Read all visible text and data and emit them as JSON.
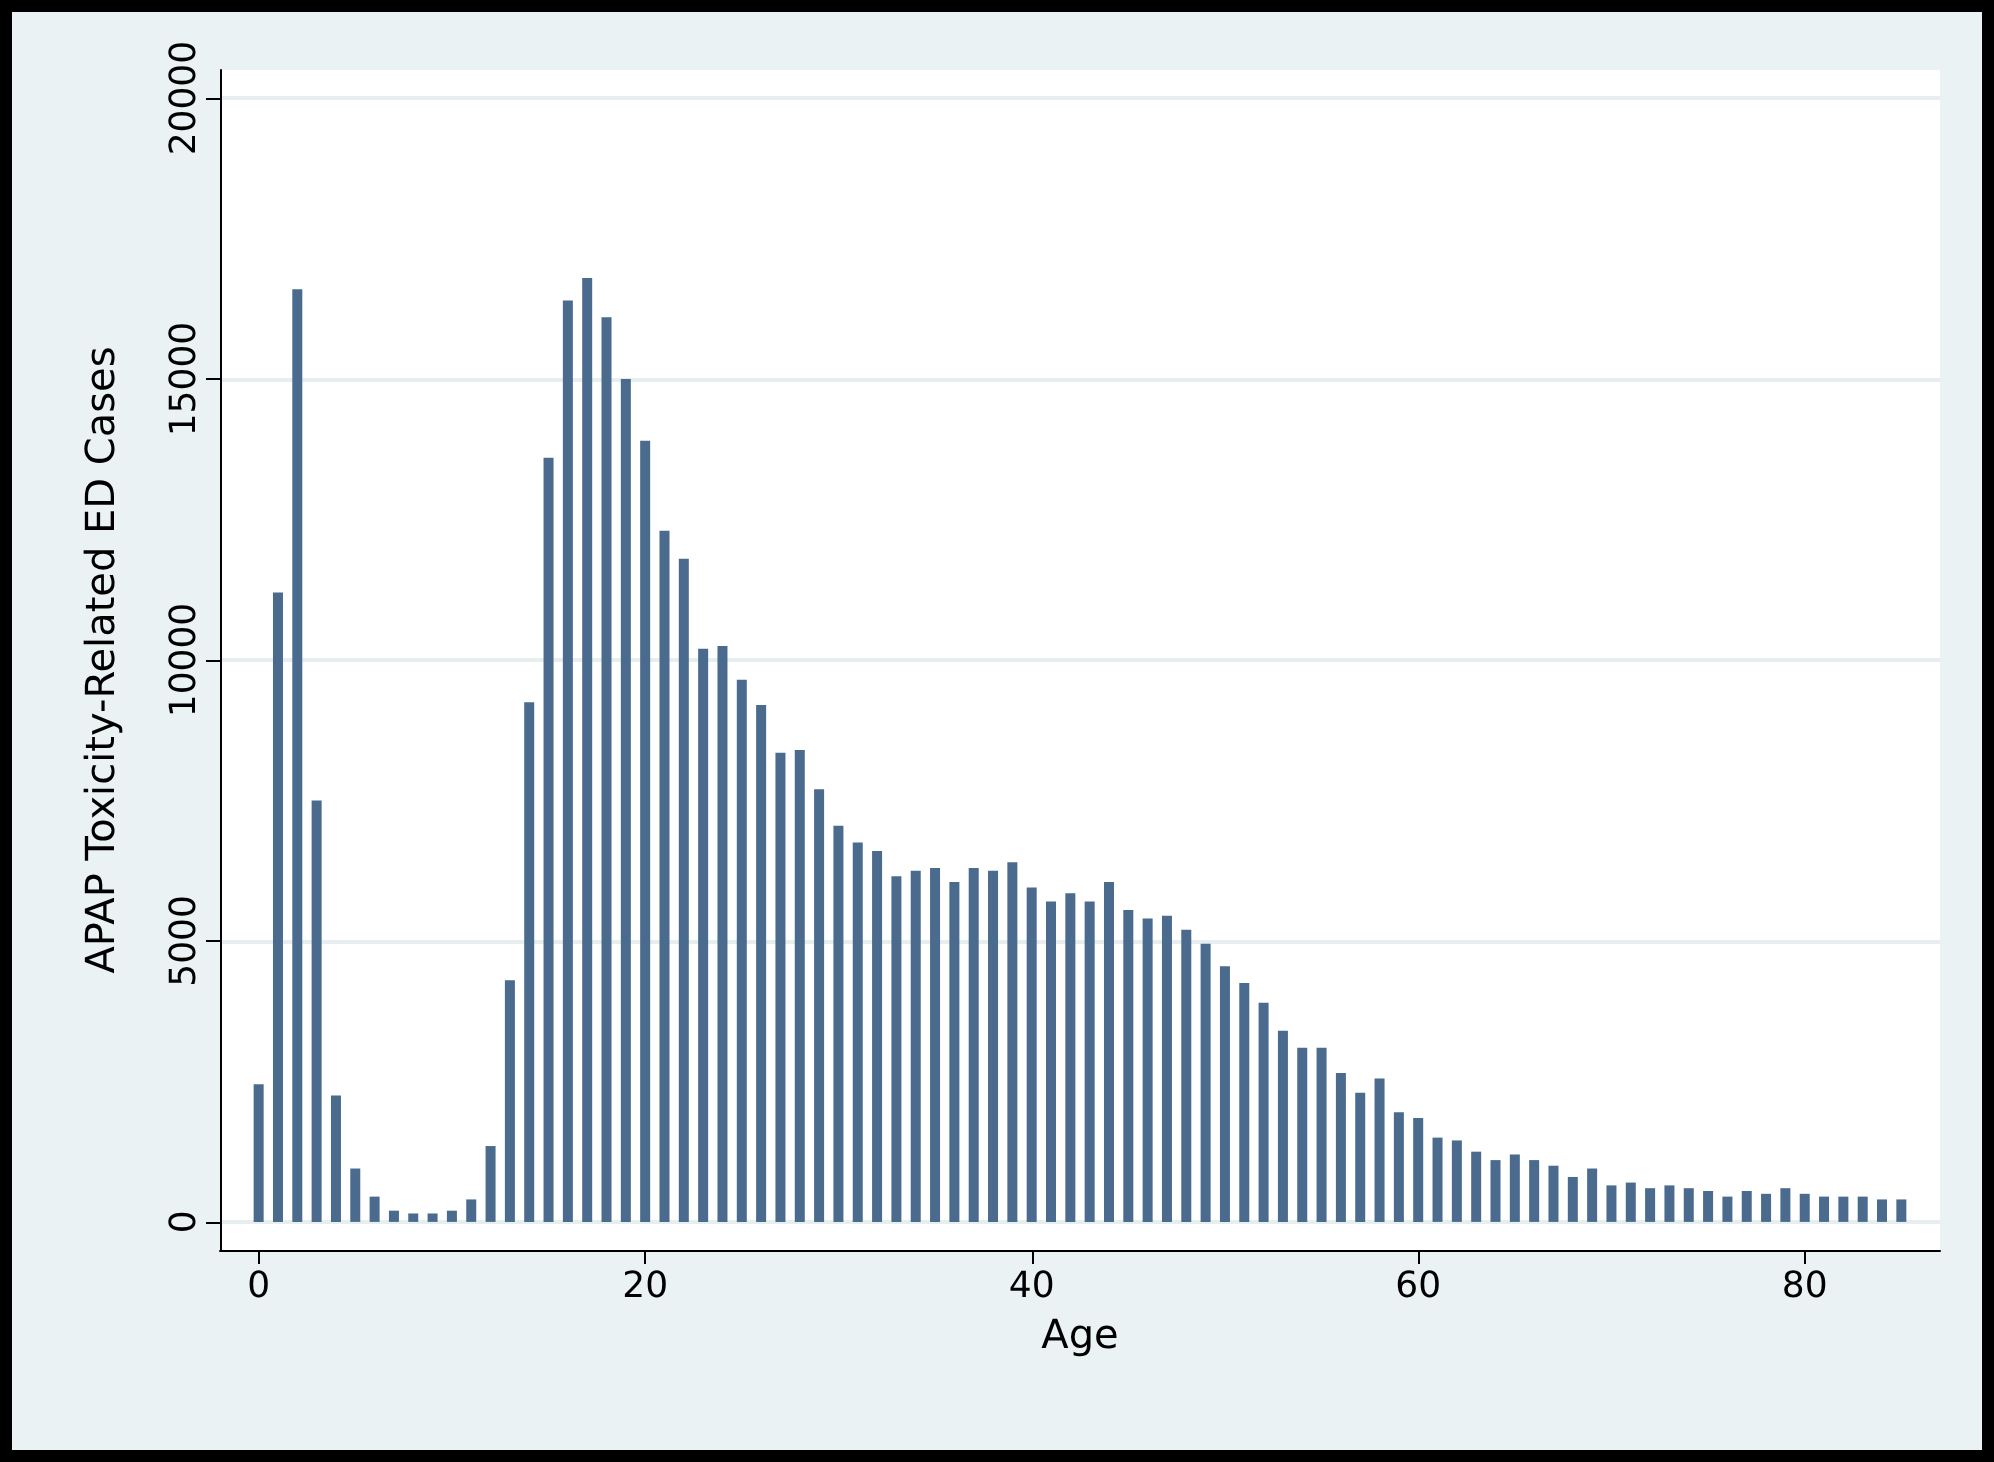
{
  "chart_data": {
    "type": "bar",
    "xlabel": "Age",
    "ylabel": "APAP Toxicity-Related ED Cases",
    "x": [
      0,
      1,
      2,
      3,
      4,
      5,
      6,
      7,
      8,
      9,
      10,
      11,
      12,
      13,
      14,
      15,
      16,
      17,
      18,
      19,
      20,
      21,
      22,
      23,
      24,
      25,
      26,
      27,
      28,
      29,
      30,
      31,
      32,
      33,
      34,
      35,
      36,
      37,
      38,
      39,
      40,
      41,
      42,
      43,
      44,
      45,
      46,
      47,
      48,
      49,
      50,
      51,
      52,
      53,
      54,
      55,
      56,
      57,
      58,
      59,
      60,
      61,
      62,
      63,
      64,
      65,
      66,
      67,
      68,
      69,
      70,
      71,
      72,
      73,
      74,
      75,
      76,
      77,
      78,
      79,
      80,
      81,
      82,
      83,
      84,
      85
    ],
    "values": [
      2450,
      11200,
      16600,
      7500,
      2250,
      950,
      450,
      200,
      150,
      150,
      200,
      400,
      1350,
      4300,
      9250,
      13600,
      16400,
      16800,
      16100,
      15000,
      13900,
      12300,
      11800,
      10200,
      10250,
      9650,
      9200,
      8350,
      8400,
      7700,
      7050,
      6750,
      6600,
      6150,
      6250,
      6300,
      6050,
      6300,
      6250,
      6400,
      5950,
      5700,
      5850,
      5700,
      6050,
      5550,
      5400,
      5450,
      5200,
      4950,
      4550,
      4250,
      3900,
      3400,
      3100,
      3100,
      2650,
      2300,
      2550,
      1950,
      1850,
      1500,
      1450,
      1250,
      1100,
      1200,
      1100,
      1000,
      800,
      950,
      650,
      700,
      600,
      650,
      600,
      550,
      450,
      550,
      500,
      600,
      500,
      450,
      450,
      450,
      400,
      400
    ],
    "color": "#4a6a8e",
    "xlim": [
      -2,
      87
    ],
    "xticks": [
      0,
      20,
      40,
      60,
      80
    ],
    "ylim": [
      -500,
      20500
    ],
    "yticks": [
      0,
      5000,
      10000,
      15000,
      20000
    ],
    "grid": "y"
  }
}
